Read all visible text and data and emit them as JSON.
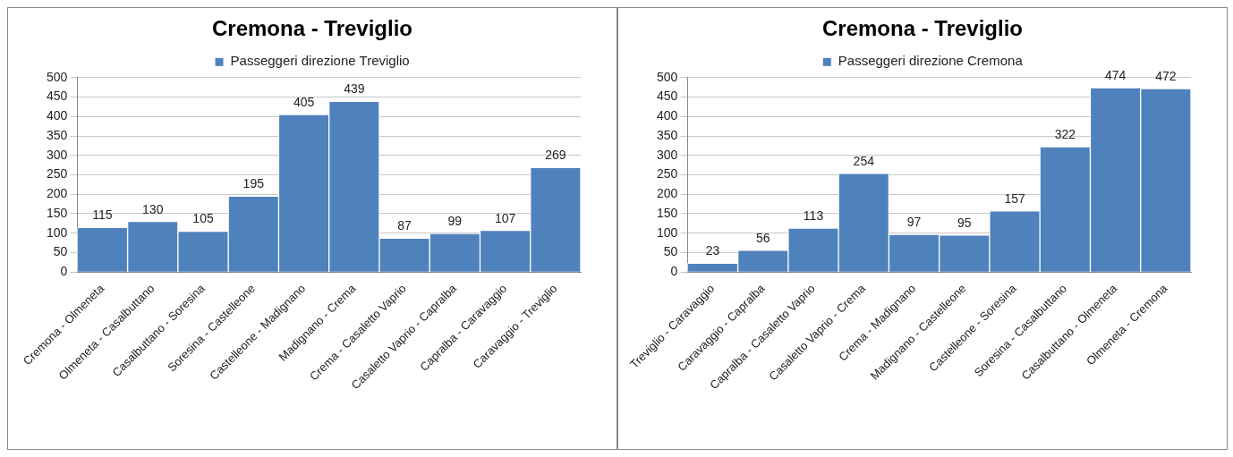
{
  "chart_data": [
    {
      "type": "bar",
      "title": "Cremona - Treviglio",
      "categories": [
        "Cremona - Olmeneta",
        "Olmeneta - Casalbuttano",
        "Casalbuttano - Soresina",
        "Soresina - Castelleone",
        "Castelleone - Madignano",
        "Madignano - Crema",
        "Crema - Casaletto Vaprio",
        "Casaletto Vaprio - Capralba",
        "Capralba - Caravaggio",
        "Caravaggio - Treviglio"
      ],
      "series": [
        {
          "name": "Passeggeri direzione Treviglio",
          "color": "#4f81bd",
          "values": [
            115,
            130,
            105,
            195,
            405,
            439,
            87,
            99,
            107,
            269
          ]
        }
      ],
      "ylim": [
        0,
        500
      ],
      "yticks": [
        0,
        50,
        100,
        150,
        200,
        250,
        300,
        350,
        400,
        450,
        500
      ],
      "grid": "y",
      "legend": "top",
      "data_labels": true
    },
    {
      "type": "bar",
      "title": "Cremona - Treviglio",
      "categories": [
        "Treviglio - Caravaggio",
        "Caravaggio - Capralba",
        "Capralba - Casaletto Vaprio",
        "Casaletto Vaprio - Crema",
        "Crema - Madignano",
        "Madignano - Castelleone",
        "Castelleone - Soresina",
        "Soresina - Casalbuttano",
        "Casalbuttano - Olmeneta",
        "Olmeneta - Cremona"
      ],
      "series": [
        {
          "name": "Passeggeri direzione Cremona",
          "color": "#4f81bd",
          "values": [
            23,
            56,
            113,
            254,
            97,
            95,
            157,
            322,
            474,
            472
          ]
        }
      ],
      "ylim": [
        0,
        500
      ],
      "yticks": [
        0,
        50,
        100,
        150,
        200,
        250,
        300,
        350,
        400,
        450,
        500
      ],
      "grid": "y",
      "legend": "top",
      "data_labels": true
    }
  ]
}
